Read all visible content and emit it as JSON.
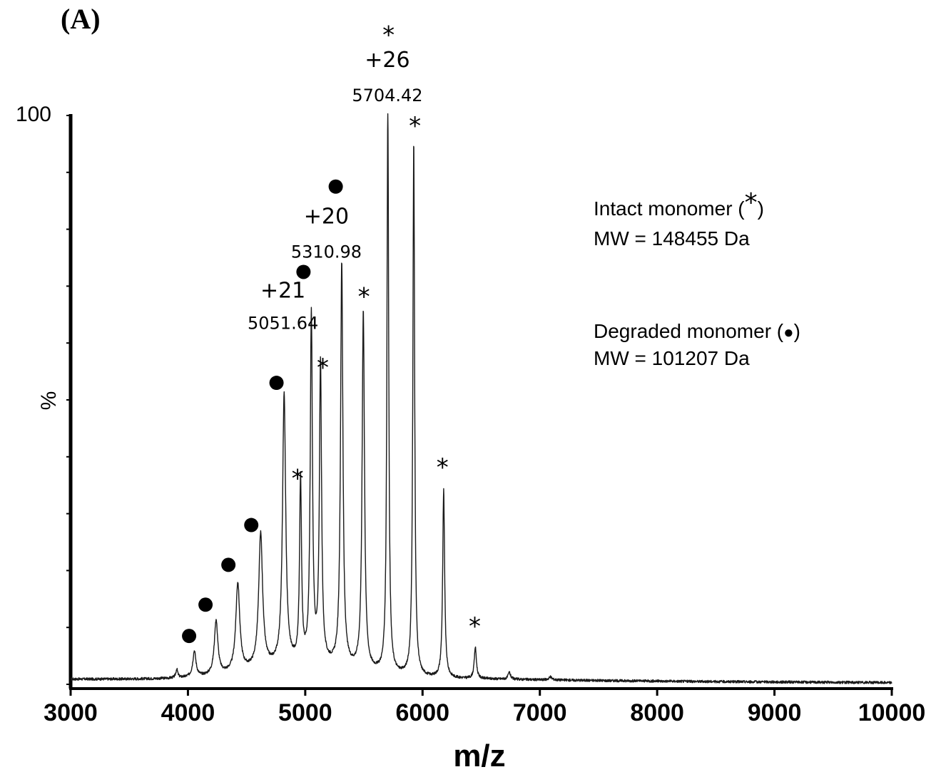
{
  "chart_data": {
    "type": "line",
    "panel_label": "(A)",
    "xlabel": "m/z",
    "ylabel": "%",
    "xlim": [
      3000,
      10000
    ],
    "ylim": [
      0,
      100
    ],
    "x_ticks": [
      3000,
      4000,
      5000,
      6000,
      7000,
      8000,
      9000,
      10000
    ],
    "y_tick_label": "100",
    "grid": false,
    "baseline": 0.8,
    "peaks": [
      {
        "mz": 3905,
        "h": 1.5,
        "w": 10
      },
      {
        "mz": 4055,
        "h": 4.5,
        "w": 16
      },
      {
        "mz": 4240,
        "h": 9.5,
        "w": 18
      },
      {
        "mz": 4425,
        "h": 15.5,
        "w": 20
      },
      {
        "mz": 4620,
        "h": 23.5,
        "w": 20
      },
      {
        "mz": 4820,
        "h": 47.5,
        "w": 16
      },
      {
        "mz": 4960,
        "h": 32.0,
        "w": 10
      },
      {
        "mz": 5052,
        "h": 61.0,
        "w": 11
      },
      {
        "mz": 5130,
        "h": 52.5,
        "w": 11
      },
      {
        "mz": 5311,
        "h": 71.0,
        "w": 12
      },
      {
        "mz": 5495,
        "h": 63.0,
        "w": 12
      },
      {
        "mz": 5704,
        "h": 100.0,
        "w": 9
      },
      {
        "mz": 5925,
        "h": 94.0,
        "w": 9
      },
      {
        "mz": 6180,
        "h": 33.0,
        "w": 10
      },
      {
        "mz": 6450,
        "h": 5.5,
        "w": 11
      },
      {
        "mz": 6740,
        "h": 1.2,
        "w": 12
      },
      {
        "mz": 7090,
        "h": 0.5,
        "w": 16
      }
    ],
    "star_markers": [
      {
        "mz": 5710,
        "y": 114.5
      },
      {
        "mz": 5935,
        "y": 98.5
      },
      {
        "mz": 5500,
        "y": 68.5
      },
      {
        "mz": 5150,
        "y": 56.0
      },
      {
        "mz": 4935,
        "y": 36.5
      },
      {
        "mz": 6170,
        "y": 38.5
      },
      {
        "mz": 6445,
        "y": 10.5
      }
    ],
    "dot_markers": [
      {
        "mz": 5260,
        "y": 87.5
      },
      {
        "mz": 4985,
        "y": 72.5
      },
      {
        "mz": 4755,
        "y": 53.0
      },
      {
        "mz": 4540,
        "y": 28.0
      },
      {
        "mz": 4345,
        "y": 21.0
      },
      {
        "mz": 4150,
        "y": 14.0
      },
      {
        "mz": 4010,
        "y": 8.5
      }
    ],
    "annotations": [
      {
        "charge": "+26",
        "mz_label": "5704.42",
        "x": 5700,
        "y_charge": 108.5,
        "y_mz": 102.5
      },
      {
        "charge": "+20",
        "mz_label": "5310.98",
        "x": 5180,
        "y_charge": 81.0,
        "y_mz": 75.0
      },
      {
        "charge": "+21",
        "mz_label": "5051.64",
        "x": 4810,
        "y_charge": 68.0,
        "y_mz": 62.5
      }
    ],
    "legend": [
      {
        "text": "Intact monomer (",
        "symbol": "*",
        "tail": ")",
        "mw": "MW = 148455 Da"
      },
      {
        "text": "Degraded monomer (",
        "symbol": "●",
        "tail": ")",
        "mw": "MW = 101207 Da"
      }
    ],
    "colors": {
      "line": "#1a1a1a",
      "axis": "#000000",
      "text": "#000000"
    }
  }
}
